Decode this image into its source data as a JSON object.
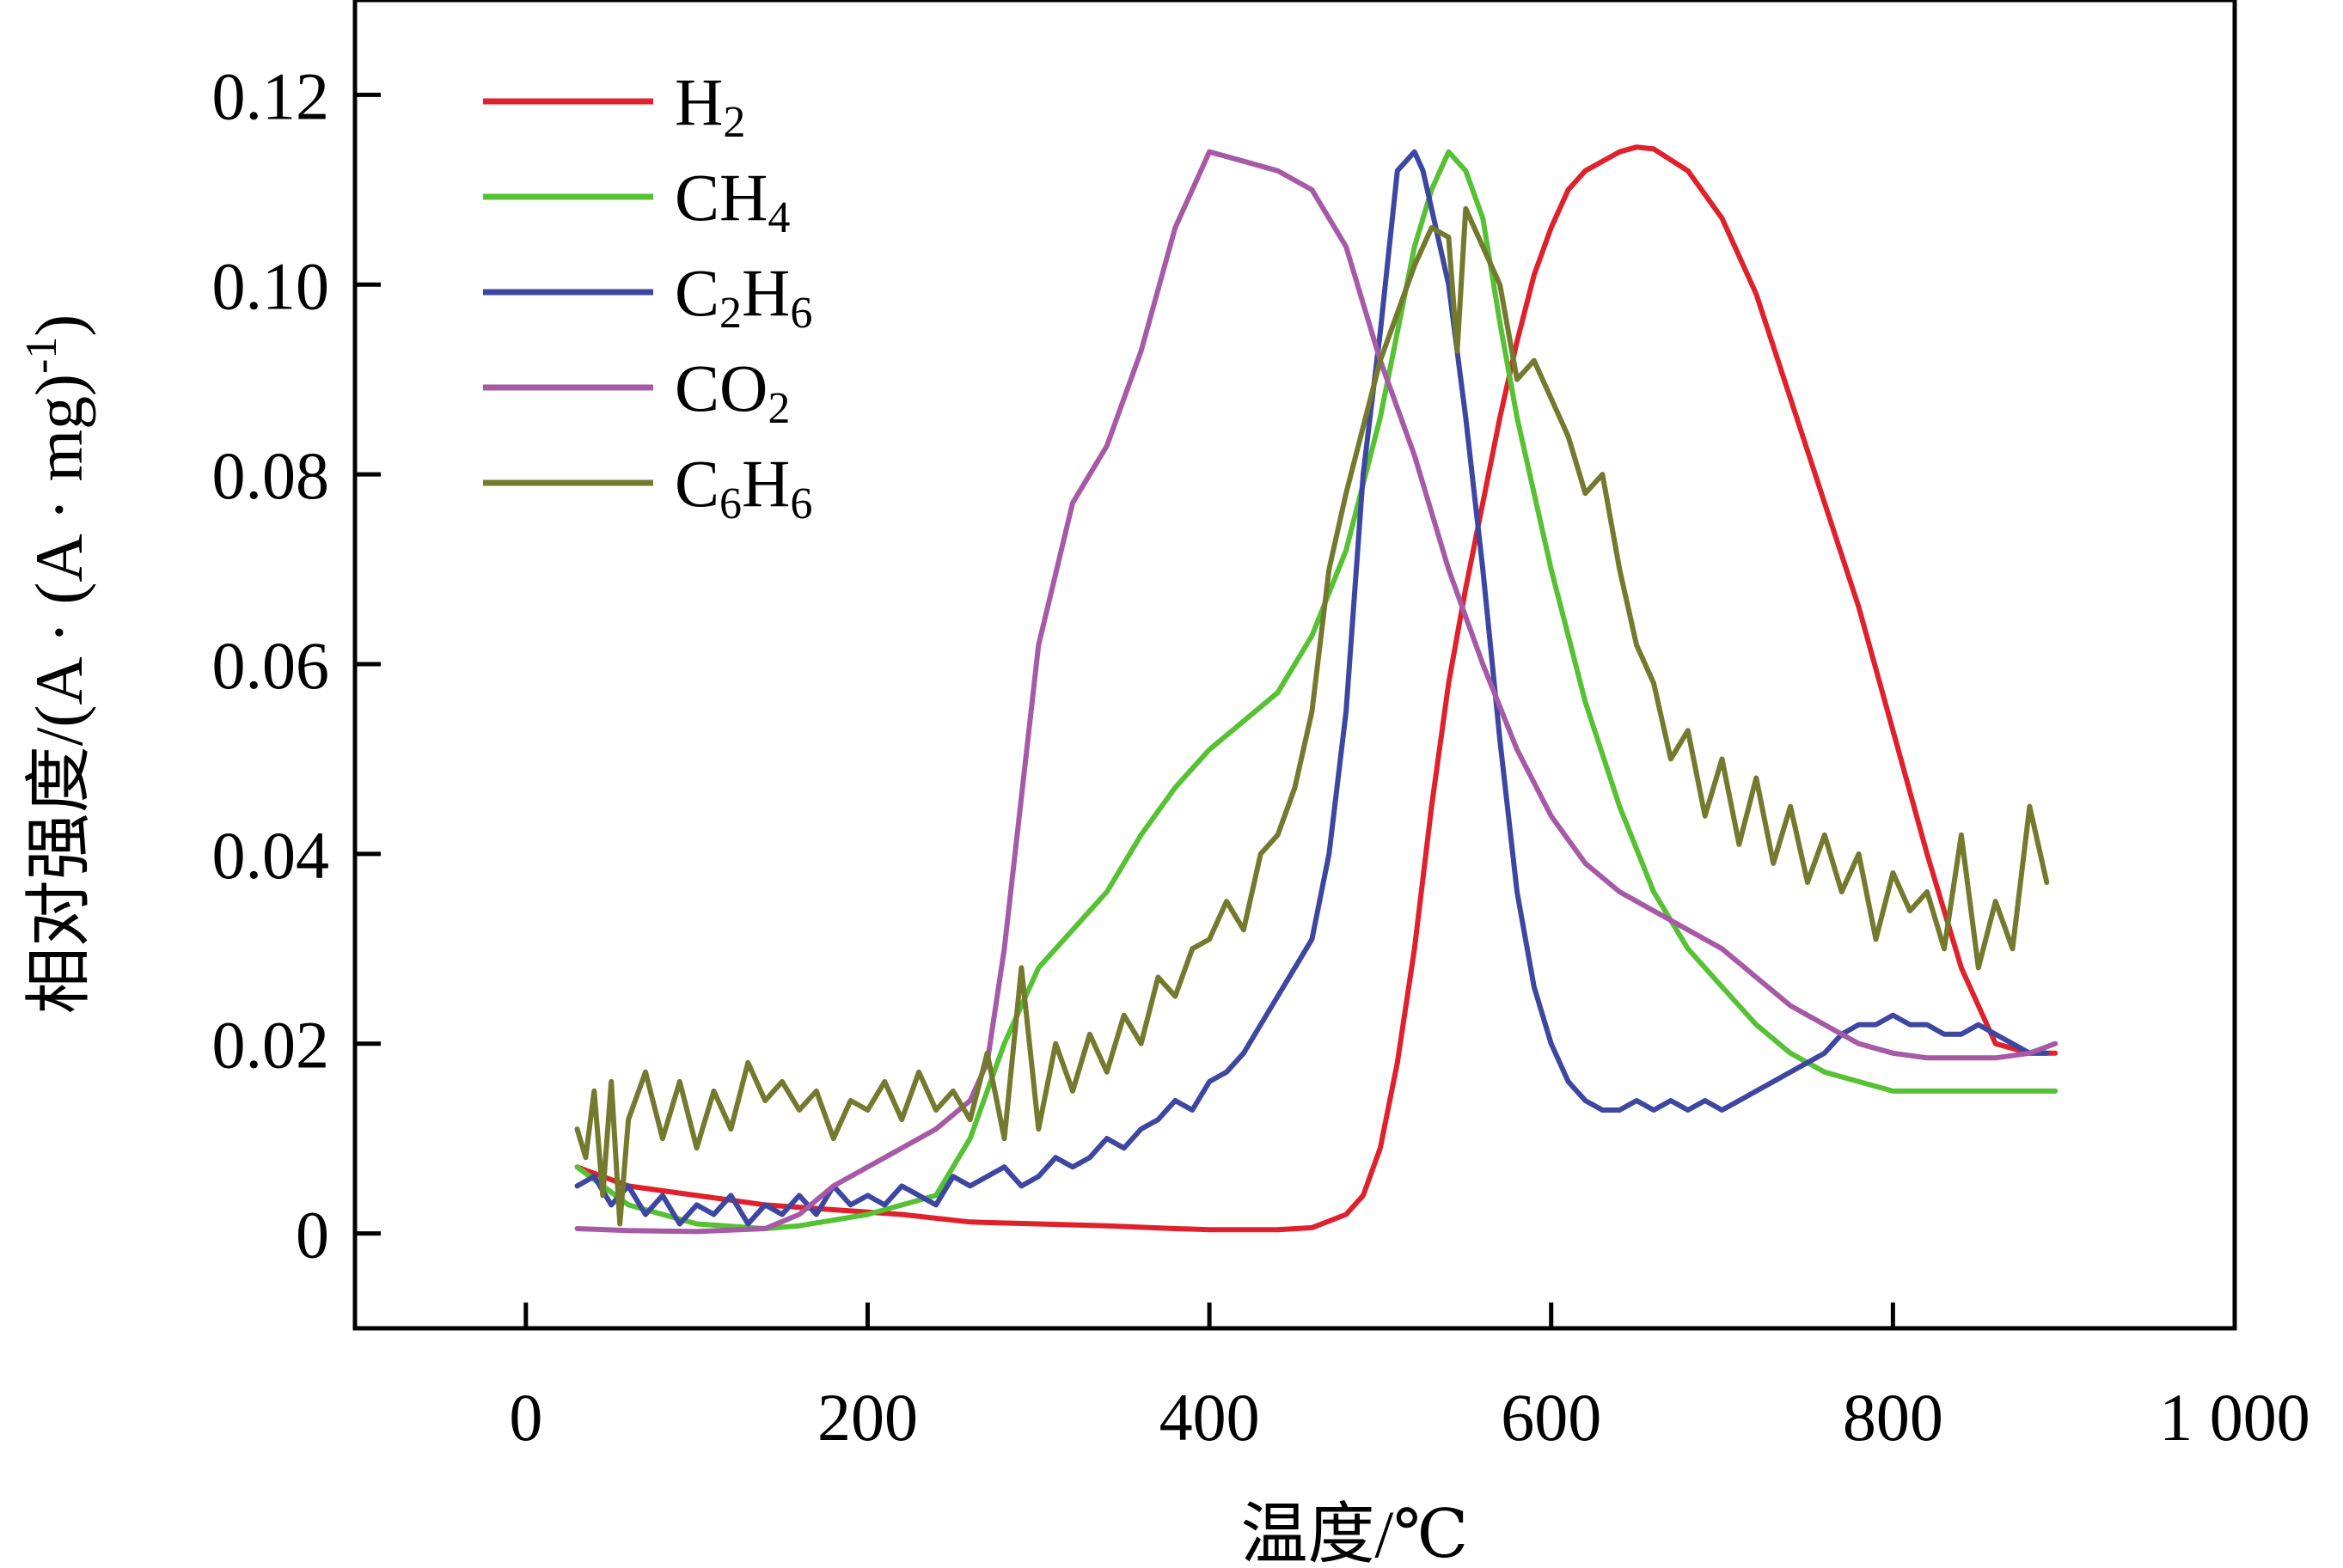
{
  "chart_data": {
    "type": "line",
    "title": "",
    "xlabel": "温度/℃",
    "ylabel": "相对强度/(A·(A·mg)⁻¹)",
    "ylabel_parts": {
      "main": "相对强度/(A · (A · mg)",
      "sup": "-1",
      "close": ")"
    },
    "xlim": [
      -100,
      1000
    ],
    "ylim": [
      -0.01,
      0.13
    ],
    "xticks": [
      0,
      200,
      400,
      600,
      800,
      1000
    ],
    "xtick_labels": [
      "0",
      "200",
      "400",
      "600",
      "800",
      "1 000"
    ],
    "yticks": [
      0,
      0.02,
      0.04,
      0.06,
      0.08,
      0.1,
      0.12
    ],
    "ytick_labels": [
      "0",
      "0.02",
      "0.04",
      "0.06",
      "0.08",
      "0.10",
      "0.12"
    ],
    "legend_position": "top-left",
    "series": [
      {
        "name": "H2",
        "label_parts": [
          {
            "t": "H",
            "sub": false
          },
          {
            "t": "2",
            "sub": true
          }
        ],
        "color": "#e0202a",
        "x": [
          30,
          60,
          100,
          140,
          180,
          220,
          260,
          300,
          340,
          380,
          400,
          420,
          440,
          460,
          480,
          490,
          500,
          510,
          520,
          530,
          540,
          550,
          560,
          570,
          580,
          590,
          600,
          610,
          620,
          630,
          640,
          650,
          660,
          680,
          700,
          720,
          740,
          760,
          780,
          800,
          820,
          840,
          860,
          880,
          895
        ],
        "y": [
          0.007,
          0.005,
          0.004,
          0.003,
          0.0025,
          0.002,
          0.0012,
          0.001,
          0.0008,
          0.0005,
          0.0004,
          0.0004,
          0.0004,
          0.0006,
          0.002,
          0.004,
          0.009,
          0.018,
          0.03,
          0.045,
          0.058,
          0.068,
          0.077,
          0.086,
          0.094,
          0.101,
          0.106,
          0.11,
          0.112,
          0.113,
          0.114,
          0.1145,
          0.1143,
          0.112,
          0.107,
          0.099,
          0.088,
          0.077,
          0.066,
          0.053,
          0.04,
          0.028,
          0.02,
          0.019,
          0.019
        ]
      },
      {
        "name": "CH4",
        "label_parts": [
          {
            "t": "CH",
            "sub": false
          },
          {
            "t": "4",
            "sub": true
          }
        ],
        "color": "#55c133",
        "x": [
          30,
          60,
          100,
          140,
          160,
          200,
          240,
          260,
          280,
          300,
          320,
          340,
          360,
          380,
          400,
          420,
          440,
          460,
          480,
          500,
          510,
          520,
          530,
          540,
          550,
          560,
          570,
          580,
          600,
          620,
          640,
          660,
          680,
          700,
          720,
          740,
          760,
          780,
          800,
          820,
          840,
          860,
          880,
          895
        ],
        "y": [
          0.007,
          0.003,
          0.001,
          0.0005,
          0.0008,
          0.002,
          0.004,
          0.01,
          0.02,
          0.028,
          0.032,
          0.036,
          0.042,
          0.047,
          0.051,
          0.054,
          0.057,
          0.063,
          0.072,
          0.086,
          0.095,
          0.104,
          0.11,
          0.114,
          0.112,
          0.107,
          0.096,
          0.086,
          0.07,
          0.056,
          0.045,
          0.036,
          0.03,
          0.026,
          0.022,
          0.019,
          0.017,
          0.016,
          0.015,
          0.015,
          0.015,
          0.015,
          0.015,
          0.015
        ]
      },
      {
        "name": "C2H6",
        "label_parts": [
          {
            "t": "C",
            "sub": false
          },
          {
            "t": "2",
            "sub": true
          },
          {
            "t": "H",
            "sub": false
          },
          {
            "t": "6",
            "sub": true
          }
        ],
        "color": "#3d46a0",
        "x": [
          30,
          40,
          50,
          60,
          70,
          80,
          90,
          100,
          110,
          120,
          130,
          140,
          150,
          160,
          170,
          180,
          190,
          200,
          210,
          220,
          230,
          240,
          250,
          260,
          270,
          280,
          290,
          300,
          310,
          320,
          330,
          340,
          350,
          360,
          370,
          380,
          390,
          400,
          410,
          420,
          430,
          440,
          450,
          460,
          470,
          480,
          490,
          500,
          510,
          520,
          525,
          530,
          540,
          550,
          560,
          570,
          580,
          590,
          600,
          610,
          620,
          630,
          640,
          650,
          660,
          670,
          680,
          690,
          700,
          710,
          720,
          730,
          740,
          750,
          760,
          770,
          780,
          790,
          800,
          810,
          820,
          830,
          840,
          850,
          860,
          870,
          880,
          890
        ],
        "y": [
          0.005,
          0.006,
          0.003,
          0.005,
          0.002,
          0.004,
          0.001,
          0.003,
          0.002,
          0.004,
          0.001,
          0.003,
          0.002,
          0.004,
          0.002,
          0.005,
          0.003,
          0.004,
          0.003,
          0.005,
          0.004,
          0.003,
          0.006,
          0.005,
          0.006,
          0.007,
          0.005,
          0.006,
          0.008,
          0.007,
          0.008,
          0.01,
          0.009,
          0.011,
          0.012,
          0.014,
          0.013,
          0.016,
          0.017,
          0.019,
          0.022,
          0.025,
          0.028,
          0.031,
          0.04,
          0.055,
          0.08,
          0.095,
          0.112,
          0.114,
          0.112,
          0.108,
          0.1,
          0.086,
          0.07,
          0.052,
          0.036,
          0.026,
          0.02,
          0.016,
          0.014,
          0.013,
          0.013,
          0.014,
          0.013,
          0.014,
          0.013,
          0.014,
          0.013,
          0.014,
          0.015,
          0.016,
          0.017,
          0.018,
          0.019,
          0.021,
          0.022,
          0.022,
          0.023,
          0.022,
          0.022,
          0.021,
          0.021,
          0.022,
          0.021,
          0.02,
          0.019,
          0.019
        ]
      },
      {
        "name": "CO2",
        "label_parts": [
          {
            "t": "CO",
            "sub": false
          },
          {
            "t": "2",
            "sub": true
          }
        ],
        "color": "#a65aa6",
        "x": [
          30,
          60,
          100,
          140,
          160,
          180,
          200,
          220,
          240,
          260,
          270,
          280,
          300,
          320,
          340,
          360,
          380,
          400,
          420,
          440,
          460,
          480,
          500,
          520,
          540,
          560,
          580,
          600,
          620,
          640,
          660,
          680,
          700,
          720,
          740,
          760,
          780,
          800,
          820,
          840,
          860,
          880,
          895
        ],
        "y": [
          0.0005,
          0.0003,
          0.0002,
          0.0005,
          0.002,
          0.005,
          0.007,
          0.009,
          0.011,
          0.014,
          0.018,
          0.03,
          0.062,
          0.077,
          0.083,
          0.093,
          0.106,
          0.114,
          0.113,
          0.112,
          0.11,
          0.104,
          0.092,
          0.082,
          0.07,
          0.06,
          0.051,
          0.044,
          0.039,
          0.036,
          0.034,
          0.032,
          0.03,
          0.027,
          0.024,
          0.022,
          0.02,
          0.019,
          0.0185,
          0.0185,
          0.0185,
          0.019,
          0.02
        ]
      },
      {
        "name": "C6H6",
        "label_parts": [
          {
            "t": "C",
            "sub": false
          },
          {
            "t": "6",
            "sub": true
          },
          {
            "t": "H",
            "sub": false
          },
          {
            "t": "6",
            "sub": true
          }
        ],
        "color": "#737a2e",
        "x": [
          30,
          35,
          40,
          45,
          50,
          55,
          60,
          70,
          80,
          90,
          100,
          110,
          120,
          130,
          140,
          150,
          160,
          170,
          180,
          190,
          200,
          210,
          220,
          230,
          240,
          250,
          260,
          270,
          280,
          290,
          300,
          310,
          320,
          330,
          340,
          350,
          360,
          370,
          380,
          390,
          400,
          410,
          420,
          430,
          440,
          450,
          460,
          470,
          480,
          490,
          500,
          510,
          520,
          530,
          540,
          545,
          550,
          560,
          570,
          580,
          590,
          600,
          610,
          620,
          630,
          640,
          650,
          660,
          670,
          680,
          690,
          700,
          710,
          720,
          730,
          740,
          750,
          760,
          770,
          780,
          790,
          800,
          810,
          820,
          830,
          840,
          850,
          860,
          870,
          880,
          890
        ],
        "y": [
          0.011,
          0.008,
          0.015,
          0.004,
          0.016,
          0.001,
          0.012,
          0.017,
          0.01,
          0.016,
          0.009,
          0.015,
          0.011,
          0.018,
          0.014,
          0.016,
          0.013,
          0.015,
          0.01,
          0.014,
          0.013,
          0.016,
          0.012,
          0.017,
          0.013,
          0.015,
          0.012,
          0.019,
          0.01,
          0.028,
          0.011,
          0.02,
          0.015,
          0.021,
          0.017,
          0.023,
          0.02,
          0.027,
          0.025,
          0.03,
          0.031,
          0.035,
          0.032,
          0.04,
          0.042,
          0.047,
          0.055,
          0.07,
          0.078,
          0.085,
          0.092,
          0.097,
          0.102,
          0.106,
          0.105,
          0.093,
          0.108,
          0.104,
          0.1,
          0.09,
          0.092,
          0.088,
          0.084,
          0.078,
          0.08,
          0.07,
          0.062,
          0.058,
          0.05,
          0.053,
          0.044,
          0.05,
          0.041,
          0.048,
          0.039,
          0.045,
          0.037,
          0.042,
          0.036,
          0.04,
          0.031,
          0.038,
          0.034,
          0.036,
          0.03,
          0.042,
          0.028,
          0.035,
          0.03,
          0.045,
          0.037
        ]
      }
    ]
  }
}
